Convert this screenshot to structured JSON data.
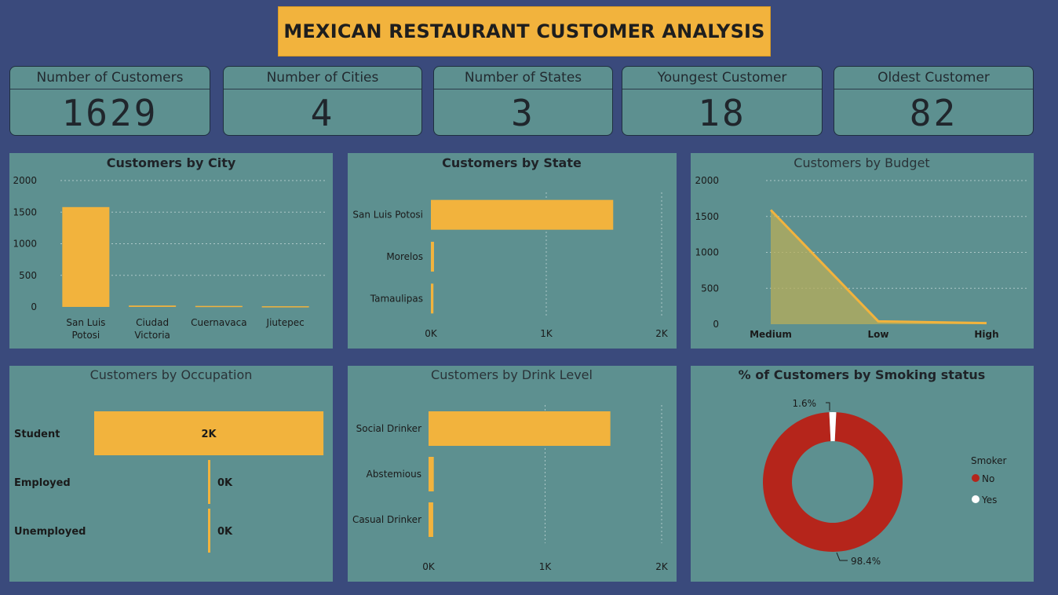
{
  "title": "MEXICAN RESTAURANT CUSTOMER ANALYSIS",
  "kpis": [
    {
      "label": "Number of Customers",
      "value": "1629"
    },
    {
      "label": "Number of Cities",
      "value": "4"
    },
    {
      "label": "Number of States",
      "value": "3"
    },
    {
      "label": "Youngest Customer",
      "value": "18"
    },
    {
      "label": "Oldest Customer",
      "value": "82"
    }
  ],
  "colors": {
    "background": "#3a4a7c",
    "panel": "#5d9090",
    "accent": "#f2b33d",
    "smoker_no": "#b5251b",
    "smoker_yes": "#ffffff"
  },
  "chart_data": [
    {
      "id": "city",
      "type": "bar",
      "title": "Customers by City",
      "categories": [
        "San Luis Potosi",
        "Ciudad Victoria",
        "Cuernavaca",
        "Jiutepec"
      ],
      "values": [
        1580,
        22,
        16,
        11
      ],
      "yticks": [
        "0",
        "500",
        "1000",
        "1500",
        "2000"
      ],
      "ylim": [
        0,
        2000
      ],
      "grid": true
    },
    {
      "id": "state",
      "type": "bar",
      "orientation": "horizontal",
      "title": "Customers by State",
      "categories": [
        "San Luis Potosi",
        "Morelos",
        "Tamaulipas"
      ],
      "values": [
        1580,
        27,
        22
      ],
      "xticks": [
        "0K",
        "1K",
        "2K"
      ],
      "xlim": [
        0,
        2000
      ],
      "grid": true
    },
    {
      "id": "budget",
      "type": "area",
      "title": "Customers by Budget",
      "categories": [
        "Medium",
        "Low",
        "High"
      ],
      "values": [
        1590,
        40,
        15
      ],
      "yticks": [
        "0",
        "500",
        "1000",
        "1500",
        "2000"
      ],
      "ylim": [
        0,
        2000
      ],
      "grid": true
    },
    {
      "id": "occupation",
      "type": "bar",
      "orientation": "horizontal",
      "title": "Customers by Occupation",
      "categories": [
        "Student",
        "Employed",
        "Unemployed"
      ],
      "values": [
        1550,
        20,
        10
      ],
      "data_labels": [
        "2K",
        "0K",
        "0K"
      ],
      "xlim": [
        0,
        1560
      ]
    },
    {
      "id": "drink",
      "type": "bar",
      "orientation": "horizontal",
      "title": "Customers by Drink Level",
      "categories": [
        "Social Drinker",
        "Abstemious",
        "Casual Drinker"
      ],
      "values": [
        1560,
        45,
        40
      ],
      "xticks": [
        "0K",
        "1K",
        "2K"
      ],
      "xlim": [
        0,
        2000
      ],
      "grid": true
    },
    {
      "id": "smoking",
      "type": "pie",
      "title": "% of Customers by Smoking status",
      "legend_title": "Smoker",
      "legend_position": "right",
      "slices": [
        {
          "name": "No",
          "value": 98.4,
          "label": "98.4%"
        },
        {
          "name": "Yes",
          "value": 1.6,
          "label": "1.6%"
        }
      ]
    }
  ]
}
